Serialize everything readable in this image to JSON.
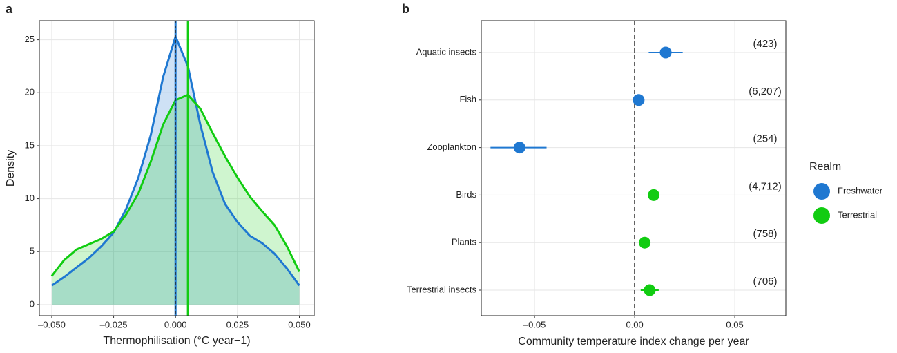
{
  "chart_data": [
    {
      "type": "density",
      "panel_label": "a",
      "x_label": "Thermophilisation (°C year−1)",
      "y_label": "Density",
      "xlim": [
        -0.055,
        0.056
      ],
      "ylim": [
        -1.05,
        26.8
      ],
      "xticks": [
        {
          "value": -0.05,
          "label": "–0.050"
        },
        {
          "value": -0.025,
          "label": "–0.025"
        },
        {
          "value": 0,
          "label": "0.000"
        },
        {
          "value": 0.025,
          "label": "0.025"
        },
        {
          "value": 0.05,
          "label": "0.050"
        }
      ],
      "yticks": [
        0,
        5,
        10,
        15,
        20,
        25
      ],
      "grid": true,
      "x": [
        -0.05,
        -0.045,
        -0.04,
        -0.035,
        -0.03,
        -0.025,
        -0.02,
        -0.015,
        -0.01,
        -0.005,
        0,
        0.005,
        0.01,
        0.015,
        0.02,
        0.025,
        0.03,
        0.035,
        0.04,
        0.045,
        0.05
      ],
      "series": [
        {
          "color": "#1f78d1",
          "fill": "rgba(31,120,209,0.22)",
          "mean": 0,
          "values": [
            1.8,
            2.6,
            3.5,
            4.4,
            5.5,
            6.8,
            9,
            12,
            16,
            21.5,
            25.3,
            22.5,
            17,
            12.5,
            9.5,
            7.8,
            6.5,
            5.8,
            4.8,
            3.4,
            1.8
          ]
        },
        {
          "color": "#11cc11",
          "fill": "rgba(17,204,17,0.2)",
          "mean": 0.005,
          "values": [
            2.7,
            4.2,
            5.2,
            5.7,
            6.2,
            6.9,
            8.5,
            10.5,
            13.5,
            17,
            19.3,
            19.8,
            18.5,
            16.2,
            14,
            12,
            10.2,
            8.8,
            7.5,
            5.5,
            3.1
          ]
        }
      ]
    },
    {
      "type": "dot",
      "panel_label": "b",
      "x_label": "Community temperature index change per year",
      "xlim": [
        -0.0766,
        0.0755
      ],
      "xticks": [
        {
          "value": -0.05,
          "label": "–0.05"
        },
        {
          "value": 0,
          "label": "0.00"
        },
        0.05
      ],
      "grid": true,
      "refline": 0,
      "categories": [
        "Aquatic insects",
        "Fish",
        "Zooplankton",
        "Birds",
        "Plants",
        "Terrestrial insects"
      ],
      "legend_title": "Realm",
      "legend": "right",
      "series": [
        {
          "name": "Freshwater",
          "color": "#1f78d1",
          "values": [
            0.0155,
            0.002,
            -0.0575,
            null,
            null,
            null
          ],
          "lower": [
            0.007,
            null,
            -0.072,
            null,
            null,
            null
          ],
          "upper": [
            0.024,
            null,
            -0.044,
            null,
            null,
            null
          ]
        },
        {
          "name": "Terrestrial",
          "color": "#11cc11",
          "values": [
            null,
            null,
            null,
            0.0095,
            0.005,
            0.0075
          ],
          "lower": [
            null,
            null,
            null,
            null,
            null,
            0.003
          ],
          "upper": [
            null,
            null,
            null,
            null,
            null,
            0.012
          ]
        }
      ],
      "sample_sizes": {
        "values": [
          423,
          6207,
          254,
          4712,
          758,
          706
        ],
        "value_labels": [
          "(423)",
          "(6,207)",
          "(254)",
          "(4,712)",
          "(758)",
          "(706)"
        ]
      }
    }
  ]
}
